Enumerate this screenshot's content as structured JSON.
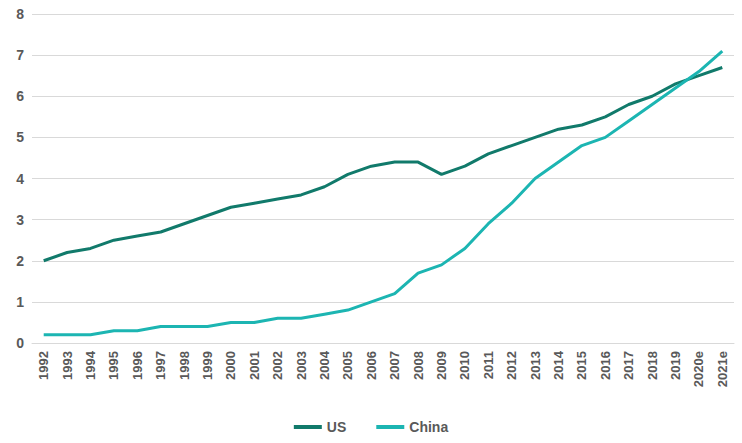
{
  "chart_data": {
    "type": "line",
    "categories": [
      "1992",
      "1993",
      "1994",
      "1995",
      "1996",
      "1997",
      "1998",
      "1999",
      "2000",
      "2001",
      "2002",
      "2003",
      "2004",
      "2005",
      "2006",
      "2007",
      "2008",
      "2009",
      "2010",
      "2011",
      "2012",
      "2013",
      "2014",
      "2015",
      "2016",
      "2017",
      "2018",
      "2019",
      "2020e",
      "2021e"
    ],
    "series": [
      {
        "name": "US",
        "color": "#117a6b",
        "values": [
          2.0,
          2.2,
          2.3,
          2.5,
          2.6,
          2.7,
          2.9,
          3.1,
          3.3,
          3.4,
          3.5,
          3.6,
          3.8,
          4.1,
          4.3,
          4.4,
          4.4,
          4.1,
          4.3,
          4.6,
          4.8,
          5.0,
          5.2,
          5.3,
          5.5,
          5.8,
          6.0,
          6.3,
          6.5,
          6.7
        ]
      },
      {
        "name": "China",
        "color": "#1cb5b2",
        "values": [
          0.2,
          0.2,
          0.2,
          0.3,
          0.3,
          0.4,
          0.4,
          0.4,
          0.5,
          0.5,
          0.6,
          0.6,
          0.7,
          0.8,
          1.0,
          1.2,
          1.7,
          1.9,
          2.3,
          2.9,
          3.4,
          4.0,
          4.4,
          4.8,
          5.0,
          5.4,
          5.8,
          6.2,
          6.6,
          7.1
        ]
      }
    ],
    "ylim": [
      0,
      8
    ],
    "yticks": [
      0,
      1,
      2,
      3,
      4,
      5,
      6,
      7,
      8
    ],
    "grid": true,
    "legend": "bottom"
  }
}
